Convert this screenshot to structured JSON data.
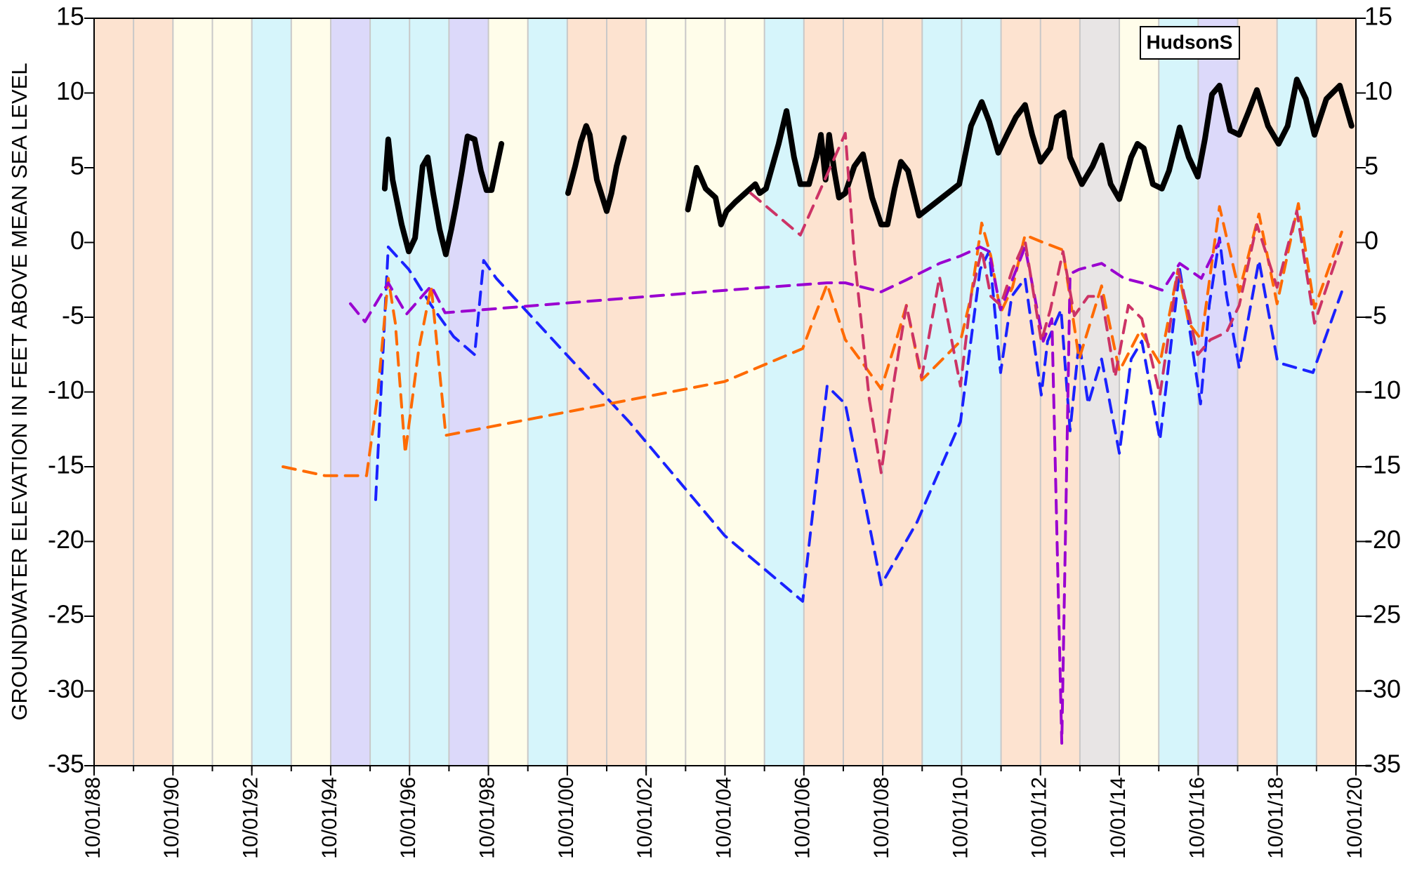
{
  "chart_data": {
    "type": "line",
    "annotation": "HudsonS",
    "ylabel": "GROUNDWATER ELEVATION IN FEET ABOVE MEAN SEA LEVEL",
    "xlim": [
      1988.75,
      2020.75
    ],
    "xticks": [
      {
        "value": 1988.75,
        "label": "10/01/88"
      },
      {
        "value": 1990.75,
        "label": "10/01/90"
      },
      {
        "value": 1992.75,
        "label": "10/01/92"
      },
      {
        "value": 1994.75,
        "label": "10/01/94"
      },
      {
        "value": 1996.75,
        "label": "10/01/96"
      },
      {
        "value": 1998.75,
        "label": "10/01/98"
      },
      {
        "value": 2000.75,
        "label": "10/01/00"
      },
      {
        "value": 2002.75,
        "label": "10/01/02"
      },
      {
        "value": 2004.75,
        "label": "10/01/04"
      },
      {
        "value": 2006.75,
        "label": "10/01/06"
      },
      {
        "value": 2008.75,
        "label": "10/01/08"
      },
      {
        "value": 2010.75,
        "label": "10/01/10"
      },
      {
        "value": 2012.75,
        "label": "10/01/12"
      },
      {
        "value": 2014.75,
        "label": "10/01/14"
      },
      {
        "value": 2016.75,
        "label": "10/01/16"
      },
      {
        "value": 2018.75,
        "label": "10/01/18"
      },
      {
        "value": 2020.75,
        "label": "10/01/20"
      }
    ],
    "ylim": [
      -35,
      15
    ],
    "yticks": [
      -35,
      -30,
      -25,
      -20,
      -15,
      -10,
      -5,
      0,
      5,
      10,
      15
    ],
    "y2lim": [
      -35,
      15
    ],
    "y2ticks": [
      -35,
      -30,
      -25,
      -20,
      -15,
      -10,
      -5,
      0,
      5,
      10,
      15
    ],
    "xgrid": true,
    "bands": [
      "#fde3d0",
      "#fde3d0",
      "#fffdea",
      "#fffdea",
      "#d6f5fb",
      "#fffdea",
      "#dcd9fa",
      "#d6f5fb",
      "#d6f5fb",
      "#dcd9fa",
      "#fffdea",
      "#d6f5fb",
      "#fde3d0",
      "#fde3d0",
      "#fffdea",
      "#fffdea",
      "#fffdea",
      "#d6f5fb",
      "#fde3d0",
      "#fde3d0",
      "#fde3d0",
      "#d6f5fb",
      "#d6f5fb",
      "#fde3d0",
      "#fde3d0",
      "#e8e5e5",
      "#fffdea",
      "#d6f5fb",
      "#dcd9fa",
      "#fde3d0",
      "#d6f5fb",
      "#fde3d0"
    ],
    "series": [
      {
        "color": "#000000",
        "width": 8,
        "dashed": false,
        "x": [
          1996.12,
          1996.21,
          1996.32,
          1996.55,
          1996.73,
          1996.89,
          1997.08,
          1997.21,
          1997.35,
          1997.51,
          1997.67,
          1997.81,
          1997.92,
          1998.08,
          1998.22,
          1998.4,
          1998.56,
          1998.7,
          1998.83,
          1999.08,
          null,
          2000.77,
          2000.95,
          2001.09,
          2001.23,
          2001.32,
          2001.5,
          2001.75,
          2001.87,
          2002.0,
          2002.19,
          null,
          2003.81,
          2004.03,
          2004.26,
          2004.51,
          2004.65,
          2004.79,
          2005.01,
          2005.52,
          2005.63,
          2005.79,
          2006.11,
          2006.31,
          2006.5,
          2006.66,
          2006.88,
          2007.07,
          2007.18,
          2007.3,
          2007.39,
          2007.52,
          2007.64,
          2007.8,
          2008.03,
          2008.25,
          2008.48,
          2008.71,
          2008.87,
          2009.05,
          2009.21,
          2009.39,
          2009.67,
          2010.69,
          2010.99,
          2011.26,
          2011.45,
          2011.68,
          2011.9,
          2012.13,
          2012.36,
          2012.54,
          2012.75,
          2013.0,
          2013.16,
          2013.34,
          2013.5,
          2013.8,
          2014.07,
          2014.3,
          2014.53,
          2014.75,
          2015.05,
          2015.21,
          2015.37,
          2015.6,
          2015.83,
          2016.01,
          2016.28,
          2016.51,
          2016.74,
          2016.92,
          2017.1,
          2017.29,
          2017.56,
          2017.79,
          2018.02,
          2018.24,
          2018.52,
          2018.79,
          2019.02,
          2019.25,
          2019.48,
          2019.7,
          2020.0,
          2020.34,
          2020.64
        ],
        "values": [
          3.6,
          6.9,
          4.2,
          1.2,
          -0.6,
          0.3,
          5.1,
          5.7,
          3.3,
          0.9,
          -0.8,
          0.9,
          2.4,
          4.8,
          7.1,
          6.9,
          4.8,
          3.5,
          3.5,
          6.6,
          null,
          3.3,
          5.1,
          6.7,
          7.8,
          7.2,
          4.2,
          2.1,
          3.3,
          5.1,
          7.0,
          null,
          2.2,
          5.0,
          3.6,
          3.0,
          1.2,
          2.1,
          2.7,
          3.9,
          3.3,
          3.6,
          6.6,
          8.8,
          5.7,
          3.9,
          3.9,
          5.7,
          7.2,
          4.2,
          7.2,
          4.8,
          3.0,
          3.3,
          5.1,
          5.9,
          3.0,
          1.2,
          1.2,
          3.6,
          5.4,
          4.8,
          1.8,
          3.9,
          7.8,
          9.4,
          8.1,
          6.0,
          7.2,
          8.4,
          9.2,
          7.2,
          5.4,
          6.3,
          8.4,
          8.7,
          5.7,
          3.9,
          5.1,
          6.5,
          3.9,
          2.9,
          5.7,
          6.6,
          6.3,
          3.9,
          3.6,
          4.8,
          7.7,
          5.7,
          4.4,
          6.9,
          9.9,
          10.5,
          7.5,
          7.2,
          8.7,
          10.2,
          7.8,
          6.6,
          7.8,
          10.9,
          9.6,
          7.2,
          9.6,
          10.5,
          7.8
        ]
      },
      {
        "color": "#1a22ff",
        "width": 4,
        "dashed": true,
        "x": [
          1995.89,
          1996.21,
          1996.73,
          1997.3,
          1997.87,
          1998.4,
          1998.63,
          1998.95,
          2000.73,
          2002.32,
          2004.74,
          2006.72,
          2007.34,
          2007.8,
          2008.71,
          2009.62,
          2010.72,
          2011.22,
          2011.45,
          2011.74,
          2012.02,
          2012.36,
          2012.77,
          2012.93,
          2013.27,
          2013.5,
          2013.73,
          2013.96,
          2014.3,
          2014.75,
          2015.05,
          2015.32,
          2015.78,
          2016.28,
          2016.51,
          2016.81,
          2017.03,
          2017.29,
          2017.47,
          2017.79,
          2018.29,
          2018.75,
          2018.86,
          2019.66,
          2020.39
        ],
        "values": [
          -17.2,
          -0.3,
          -1.8,
          -4.2,
          -6.3,
          -7.5,
          -1.2,
          -2.4,
          -7.5,
          -12.0,
          -19.6,
          -24.0,
          -9.6,
          -10.8,
          -22.9,
          -18.7,
          -12.0,
          -1.8,
          -0.6,
          -8.7,
          -3.6,
          -2.4,
          -10.2,
          -6.6,
          -4.5,
          -12.6,
          -6.6,
          -10.8,
          -7.8,
          -14.1,
          -7.8,
          -6.6,
          -13.2,
          -1.8,
          -5.4,
          -10.8,
          -4.2,
          0.3,
          -3.6,
          -8.4,
          -1.2,
          -7.8,
          -8.1,
          -8.7,
          -3.3
        ]
      },
      {
        "color": "#ff6a00",
        "width": 4,
        "dashed": true,
        "x": [
          1993.54,
          1994.61,
          1995.66,
          1995.94,
          1996.21,
          1996.39,
          1996.64,
          1996.98,
          1997.3,
          1997.67,
          2004.74,
          2006.72,
          2007.0,
          2007.34,
          2007.8,
          2008.25,
          2008.71,
          2009.05,
          2009.35,
          2009.74,
          2010.72,
          2010.99,
          2011.26,
          2011.49,
          2011.74,
          2012.04,
          2012.36,
          2012.82,
          2013.32,
          2013.73,
          2014.3,
          2014.75,
          2015.28,
          2015.78,
          2016.24,
          2016.51,
          2016.83,
          2017.29,
          2017.79,
          2018.29,
          2018.75,
          2019.29,
          2019.7,
          2020.39
        ],
        "values": [
          -15.0,
          -15.6,
          -15.6,
          -10.2,
          -2.4,
          -5.4,
          -14.1,
          -7.2,
          -2.9,
          -12.9,
          -9.3,
          -7.1,
          -5.1,
          -2.8,
          -6.5,
          -8.1,
          -9.8,
          -6.9,
          -4.2,
          -9.2,
          -6.6,
          -3.6,
          1.3,
          -0.9,
          -4.7,
          -3.0,
          0.5,
          0.0,
          -0.5,
          -7.8,
          -2.9,
          -8.6,
          -5.9,
          -8.1,
          -1.8,
          -5.4,
          -6.5,
          2.4,
          -3.3,
          1.9,
          -4.1,
          2.6,
          -4.4,
          0.7
        ]
      },
      {
        "color": "#9a00d0",
        "width": 4,
        "dashed": true,
        "x": [
          1995.25,
          1995.62,
          1996.21,
          1996.67,
          1997.3,
          1997.65,
          2004.74,
          2007.34,
          2007.8,
          2008.71,
          2009.35,
          2010.19,
          2010.72,
          2011.22,
          2011.45,
          2011.74,
          2012.36,
          2012.82,
          2013.04,
          2013.29,
          2013.5,
          2013.73,
          2014.3,
          2014.87,
          2015.32,
          2015.85,
          2016.28,
          2016.83,
          2017.29
        ],
        "values": [
          -4.1,
          -5.3,
          -2.7,
          -4.8,
          -2.9,
          -4.7,
          -3.2,
          -2.7,
          -2.7,
          -3.3,
          -2.5,
          -1.4,
          -0.9,
          -0.3,
          -0.6,
          -4.5,
          -0.3,
          -6.6,
          -5.1,
          -33.5,
          -2.1,
          -1.8,
          -1.4,
          -2.4,
          -2.7,
          -3.2,
          -1.4,
          -2.4,
          0.1
        ]
      },
      {
        "color": "#cc3366",
        "width": 4,
        "dashed": true,
        "x": [
          2005.4,
          2006.66,
          2007.8,
          2008.03,
          2008.41,
          2008.71,
          2009.05,
          2009.35,
          2009.74,
          2010.19,
          2010.72,
          2010.99,
          2011.26,
          2011.49,
          2011.74,
          2012.04,
          2012.36,
          2012.77,
          2013.0,
          2013.32,
          2013.61,
          2013.96,
          2014.3,
          2014.64,
          2014.98,
          2015.32,
          2015.78,
          2016.24,
          2016.51,
          2016.74,
          2017.06,
          2017.47,
          2017.79,
          2018.24,
          2018.75,
          2019.25,
          2019.7,
          2020.39
        ],
        "values": [
          3.3,
          0.5,
          7.3,
          -0.9,
          -10.5,
          -15.4,
          -9.0,
          -4.2,
          -9.0,
          -2.3,
          -9.6,
          -3.6,
          -0.5,
          -3.6,
          -4.2,
          -1.8,
          0.1,
          -6.6,
          -4.5,
          -0.6,
          -4.9,
          -3.6,
          -3.6,
          -9.0,
          -4.2,
          -5.1,
          -10.2,
          -1.8,
          -4.8,
          -7.5,
          -6.5,
          -6.0,
          -4.2,
          1.2,
          -3.0,
          2.1,
          -5.4,
          0.0
        ]
      }
    ]
  }
}
